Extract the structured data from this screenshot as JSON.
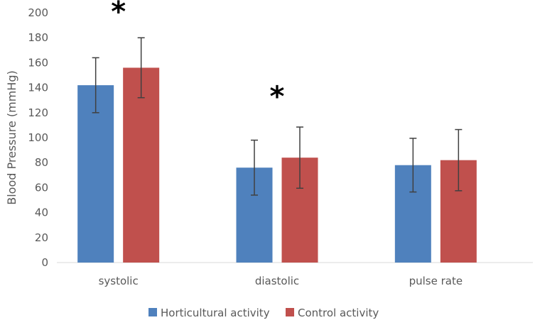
{
  "chart_data": {
    "type": "bar",
    "title": "",
    "xlabel": "",
    "ylabel": "Blood Pressure (mmHg)",
    "ylim": [
      0,
      200
    ],
    "yticks": [
      0,
      20,
      40,
      60,
      80,
      100,
      120,
      140,
      160,
      180,
      200
    ],
    "categories": [
      "systolic",
      "diastolic",
      "pulse rate"
    ],
    "series": [
      {
        "name": "Horticultural activity",
        "color": "#4F81BD",
        "values": [
          142,
          76,
          78
        ],
        "errors": [
          22,
          22,
          21.5
        ]
      },
      {
        "name": "Control activity",
        "color": "#C0504D",
        "values": [
          156,
          84,
          82
        ],
        "errors": [
          24,
          24.5,
          24.5
        ]
      }
    ],
    "annotations": [
      {
        "text": "*",
        "category_index": 0,
        "y": 208
      },
      {
        "text": "*",
        "category_index": 1,
        "y": 140
      }
    ],
    "legend": "bottom",
    "grid": false
  }
}
